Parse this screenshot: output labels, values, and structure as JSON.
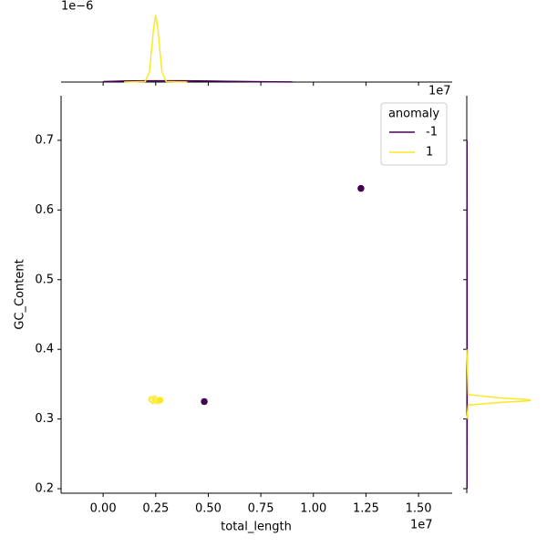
{
  "chart_data": [
    {
      "type": "scatter",
      "xlabel": "total_length",
      "ylabel": "GC_Content",
      "x_offset_label": "1e7",
      "xlim": [
        -0.2,
        1.66
      ],
      "ylim": [
        0.1935,
        0.764
      ],
      "xticks": [
        {
          "value": 0,
          "label": "0.00"
        },
        {
          "value": 0.25,
          "label": "0.25"
        },
        {
          "value": 0.5,
          "label": "0.50"
        },
        {
          "value": 0.75,
          "label": "0.75"
        },
        {
          "value": 1,
          "label": "1.00"
        },
        {
          "value": 1.25,
          "label": "1.25"
        },
        {
          "value": 1.5,
          "label": "1.50"
        }
      ],
      "yticks": [
        0.2,
        0.3,
        0.4,
        0.5,
        0.6,
        0.7
      ],
      "legend": {
        "title": "anomaly",
        "corner": "upper right"
      },
      "series": [
        {
          "name": "-1",
          "color": "#440154",
          "x": [
            1.226,
            0.481
          ],
          "values": [
            0.631,
            0.325
          ]
        },
        {
          "name": "1",
          "color": "#fde725",
          "x": [
            0.23,
            0.24,
            0.245,
            0.25,
            0.26,
            0.27
          ],
          "values": [
            0.328,
            0.326,
            0.329,
            0.327,
            0.326,
            0.327
          ]
        }
      ]
    },
    {
      "type": "kde-top",
      "y_offset_label": "1e−6",
      "ylim": [
        0,
        3
      ],
      "x": [
        0.0,
        0.1,
        0.2,
        0.22,
        0.24,
        0.25,
        0.26,
        0.28,
        0.3,
        0.4,
        0.5,
        0.6,
        0.7,
        0.8,
        0.9
      ],
      "series": [
        {
          "name": "-1",
          "color": "#440154",
          "values": [
            0.02,
            0.04,
            0.05,
            0.05,
            0.05,
            0.05,
            0.05,
            0.05,
            0.05,
            0.05,
            0.04,
            0.03,
            0.02,
            0.01,
            0.005
          ]
        },
        {
          "name": "1",
          "color": "#fde725",
          "values": [
            null,
            0,
            0.02,
            0.4,
            2.2,
            2.75,
            2.2,
            0.4,
            0.02,
            0,
            null,
            null,
            null,
            null,
            null
          ]
        }
      ]
    },
    {
      "type": "kde-right",
      "xlim": [
        0,
        1
      ],
      "y": [
        0.2,
        0.3,
        0.32,
        0.324,
        0.326,
        0.327,
        0.328,
        0.33,
        0.335,
        0.4,
        0.5,
        0.6,
        0.7
      ],
      "series": [
        {
          "name": "-1",
          "color": "#440154",
          "values": [
            0.003,
            0.005,
            0.005,
            0.005,
            0.005,
            0.005,
            0.005,
            0.005,
            0.005,
            0.005,
            0.005,
            0.004,
            0.003
          ]
        },
        {
          "name": "1",
          "color": "#fde725",
          "values": [
            null,
            0,
            0.02,
            0.5,
            0.85,
            0.9,
            0.85,
            0.5,
            0.02,
            0,
            null,
            null,
            null
          ]
        }
      ]
    }
  ]
}
